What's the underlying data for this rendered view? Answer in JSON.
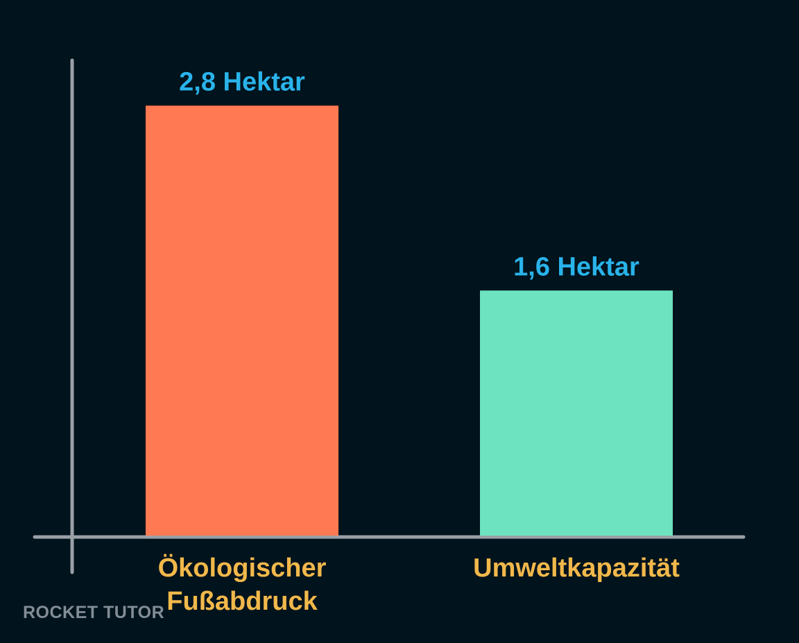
{
  "chart_data": {
    "type": "bar",
    "categories": [
      "Ökologischer Fußabdruck",
      "Umweltkapazität"
    ],
    "category_lines": [
      [
        "Ökologischer",
        "Fußabdruck"
      ],
      [
        "Umweltkapazität"
      ]
    ],
    "values": [
      2.8,
      1.6
    ],
    "unit": "Hektar",
    "data_labels": [
      "2,8 Hektar",
      "1,6 Hektar"
    ],
    "bar_colors": [
      "#ff7a52",
      "#6de3bf"
    ],
    "data_label_color": "#29b3ea",
    "category_label_color": "#f2b84b",
    "axis_color": "#9aa0a6",
    "background": "#01131c",
    "title": "",
    "xlabel": "",
    "ylabel": "",
    "ylim": [
      0,
      3.0
    ],
    "grid": false,
    "legend": "none"
  },
  "watermark": {
    "text": "ROCKET TUTOR"
  }
}
